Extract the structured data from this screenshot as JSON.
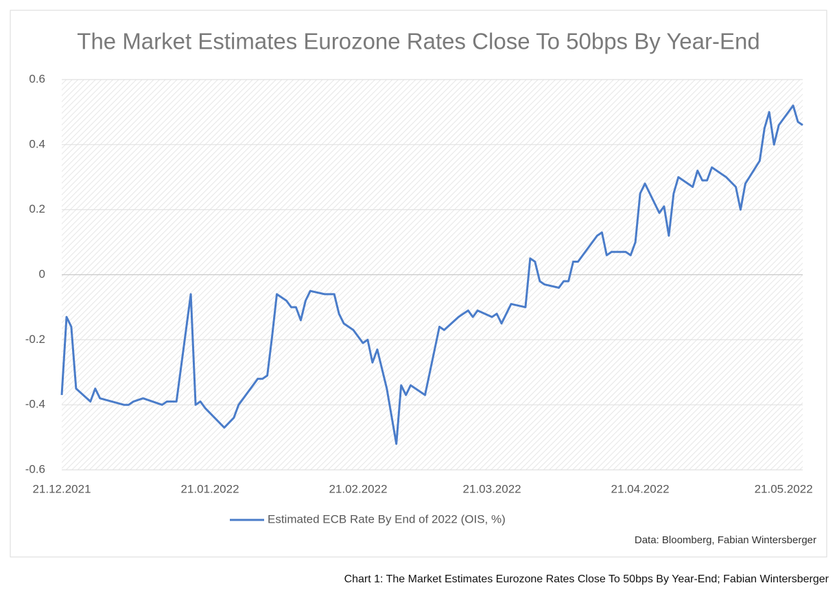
{
  "chart_data": {
    "type": "line",
    "title": "The Market Estimates Eurozone Rates Close To 50bps By Year-End",
    "source": "Data: Bloomberg, Fabian Wintersberger",
    "caption": "Chart 1: The Market Estimates Eurozone Rates Close To 50bps By Year-End; Fabian Wintersberger",
    "x": [
      "21.12.2021",
      "22.12.2021",
      "23.12.2021",
      "24.12.2021",
      "27.12.2021",
      "28.12.2021",
      "29.12.2021",
      "03.01.2022",
      "04.01.2022",
      "05.01.2022",
      "07.01.2022",
      "11.01.2022",
      "12.01.2022",
      "14.01.2022",
      "17.01.2022",
      "18.01.2022",
      "19.01.2022",
      "20.01.2022",
      "24.01.2022",
      "26.01.2022",
      "27.01.2022",
      "28.01.2022",
      "31.01.2022",
      "01.02.2022",
      "02.02.2022",
      "03.02.2022",
      "04.02.2022",
      "06.02.2022",
      "07.02.2022",
      "08.02.2022",
      "09.02.2022",
      "10.02.2022",
      "11.02.2022",
      "14.02.2022",
      "16.02.2022",
      "17.02.2022",
      "18.02.2022",
      "20.02.2022",
      "22.02.2022",
      "23.02.2022",
      "24.02.2022",
      "25.02.2022",
      "27.02.2022",
      "01.03.2022",
      "02.03.2022",
      "03.03.2022",
      "04.03.2022",
      "07.03.2022",
      "09.03.2022",
      "10.03.2022",
      "11.03.2022",
      "14.03.2022",
      "15.03.2022",
      "16.03.2022",
      "17.03.2022",
      "18.03.2022",
      "21.03.2022",
      "22.03.2022",
      "23.03.2022",
      "25.03.2022",
      "28.03.2022",
      "29.03.2022",
      "30.03.2022",
      "31.03.2022",
      "01.04.2022",
      "04.04.2022",
      "05.04.2022",
      "06.04.2022",
      "07.04.2022",
      "08.04.2022",
      "11.04.2022",
      "12.04.2022",
      "13.04.2022",
      "14.04.2022",
      "15.04.2022",
      "18.04.2022",
      "19.04.2022",
      "20.04.2022",
      "21.04.2022",
      "22.04.2022",
      "25.04.2022",
      "26.04.2022",
      "27.04.2022",
      "28.04.2022",
      "29.04.2022",
      "02.05.2022",
      "03.05.2022",
      "04.05.2022",
      "05.05.2022",
      "06.05.2022",
      "09.05.2022",
      "11.05.2022",
      "12.05.2022",
      "13.05.2022",
      "16.05.2022",
      "17.05.2022",
      "18.05.2022",
      "19.05.2022",
      "20.05.2022",
      "23.05.2022",
      "24.05.2022",
      "25.05.2022"
    ],
    "series": [
      {
        "name": "Estimated ECB Rate By End of 2022 (OIS, %)",
        "color": "#4a7cc9",
        "values": [
          -0.37,
          -0.13,
          -0.16,
          -0.35,
          -0.39,
          -0.35,
          -0.38,
          -0.4,
          -0.4,
          -0.39,
          -0.38,
          -0.4,
          -0.39,
          -0.39,
          -0.06,
          -0.4,
          -0.39,
          -0.41,
          -0.47,
          -0.44,
          -0.4,
          -0.38,
          -0.32,
          -0.32,
          -0.31,
          -0.19,
          -0.06,
          -0.08,
          -0.1,
          -0.1,
          -0.14,
          -0.08,
          -0.05,
          -0.06,
          -0.06,
          -0.12,
          -0.15,
          -0.17,
          -0.21,
          -0.2,
          -0.27,
          -0.23,
          -0.35,
          -0.52,
          -0.34,
          -0.37,
          -0.34,
          -0.37,
          -0.23,
          -0.16,
          -0.17,
          -0.13,
          -0.12,
          -0.11,
          -0.13,
          -0.11,
          -0.13,
          -0.12,
          -0.15,
          -0.09,
          -0.1,
          0.05,
          0.04,
          -0.02,
          -0.03,
          -0.04,
          -0.02,
          -0.02,
          0.04,
          0.04,
          0.1,
          0.12,
          0.13,
          0.06,
          0.07,
          0.07,
          0.06,
          0.1,
          0.25,
          0.28,
          0.19,
          0.21,
          0.12,
          0.25,
          0.3,
          0.27,
          0.32,
          0.29,
          0.29,
          0.33,
          0.3,
          0.27,
          0.2,
          0.28,
          0.35,
          0.45,
          0.5,
          0.4,
          0.46,
          0.52,
          0.47,
          0.46
        ]
      }
    ],
    "xlim": [
      "21.12.2021",
      "25.05.2022"
    ],
    "xticks": [
      "21.12.2021",
      "21.01.2022",
      "21.02.2022",
      "21.03.2022",
      "21.04.2022",
      "21.05.2022"
    ],
    "ylim": [
      -0.6,
      0.6
    ],
    "yticks": [
      0.6,
      0.4,
      0.2,
      0,
      -0.2,
      -0.4,
      -0.6
    ],
    "grid": true
  }
}
